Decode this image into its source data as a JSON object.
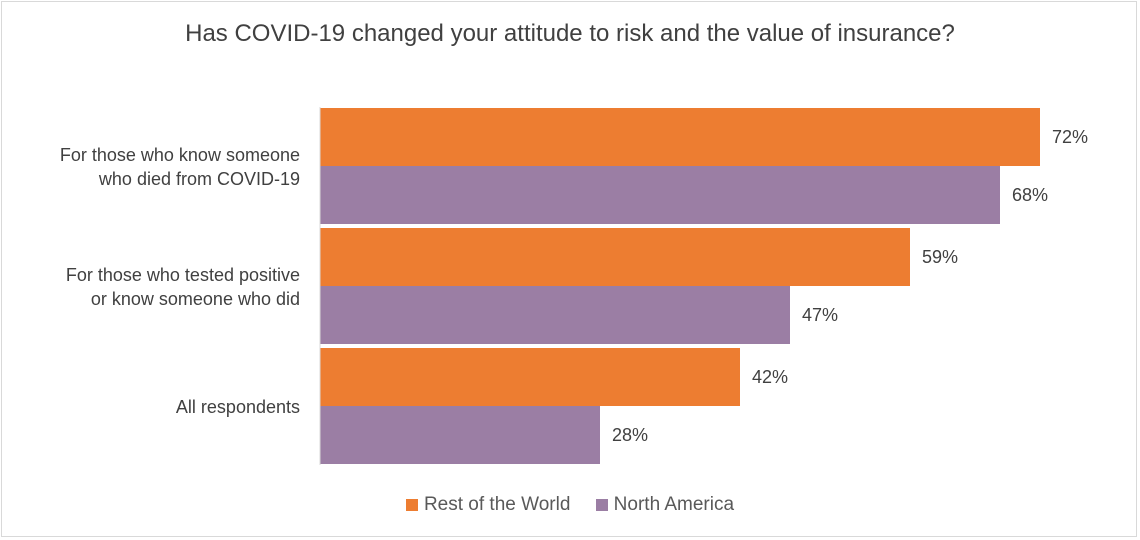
{
  "chart_data": {
    "type": "bar",
    "orientation": "horizontal",
    "title": "Has COVID-19 changed your attitude to risk and the value of insurance?",
    "categories": [
      "For those who know someone who died from COVID-19",
      "For those who tested positive or know someone who did",
      "All respondents"
    ],
    "category_lines": [
      [
        "For those who know someone",
        "who died from COVID-19"
      ],
      [
        "For those who tested positive",
        "or know someone who did"
      ],
      [
        "All respondents"
      ]
    ],
    "series": [
      {
        "name": "Rest of the World",
        "values": [
          72,
          59,
          42
        ],
        "color": "#ED7D31"
      },
      {
        "name": "North America",
        "values": [
          68,
          47,
          28
        ],
        "color": "#9B7EA4"
      }
    ],
    "value_labels": [
      [
        "72%",
        "59%",
        "42%"
      ],
      [
        "68%",
        "47%",
        "28%"
      ]
    ],
    "xlim": [
      0,
      80
    ],
    "grid": false,
    "legend_position": "bottom"
  }
}
